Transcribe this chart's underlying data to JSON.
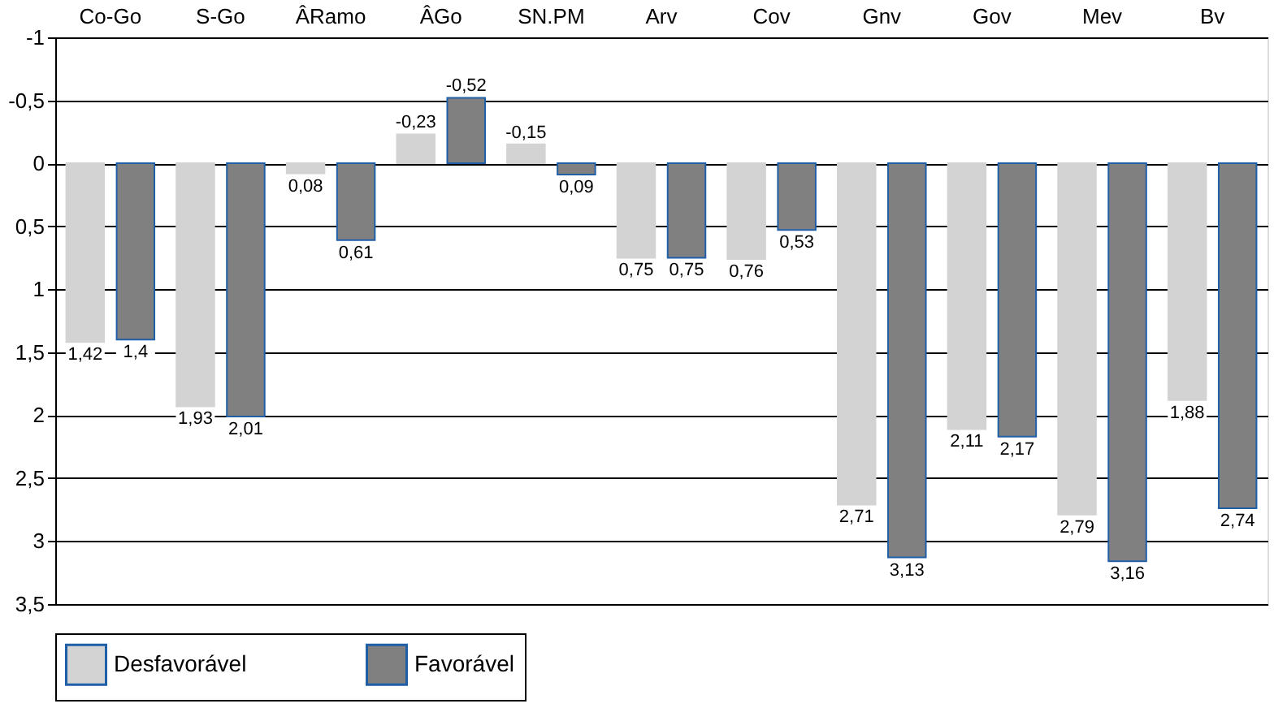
{
  "chart_data": {
    "type": "bar",
    "categories": [
      "Co-Go",
      "S-Go",
      "ÂRamo",
      "ÂGo",
      "SN.PM",
      "Arv",
      "Cov",
      "Gnv",
      "Gov",
      "Mev",
      "Bv"
    ],
    "series": [
      {
        "name": "Desfavorável",
        "color": "#d3d3d3",
        "values": [
          1.42,
          1.93,
          0.08,
          -0.23,
          -0.15,
          0.75,
          0.76,
          2.71,
          2.11,
          2.79,
          1.88
        ],
        "value_labels": [
          "1,42",
          "1,93",
          "0,08",
          "-0,23",
          "-0,15",
          "0,75",
          "0,76",
          "2,71",
          "2,11",
          "2,79",
          "1,88"
        ]
      },
      {
        "name": "Favorável",
        "color": "#808080",
        "values": [
          1.4,
          2.01,
          0.61,
          -0.52,
          0.09,
          0.75,
          0.53,
          3.13,
          2.17,
          3.16,
          2.74
        ],
        "value_labels": [
          "1,4",
          "2,01",
          "0,61",
          "-0,52",
          "0,09",
          "0,75",
          "0,53",
          "3,13",
          "2,17",
          "3,16",
          "2,74"
        ]
      }
    ],
    "ylim": [
      3.5,
      -1
    ],
    "yticks": [
      {
        "value": -1,
        "label": "-1"
      },
      {
        "value": -0.5,
        "label": "-0,5"
      },
      0,
      {
        "value": 0.5,
        "label": "0,5"
      },
      1,
      {
        "value": 1.5,
        "label": "1,5"
      },
      2,
      {
        "value": 2.5,
        "label": "2,5"
      },
      3,
      {
        "value": 3.5,
        "label": "3,5"
      }
    ],
    "grid": "y",
    "legend": "bottom"
  }
}
